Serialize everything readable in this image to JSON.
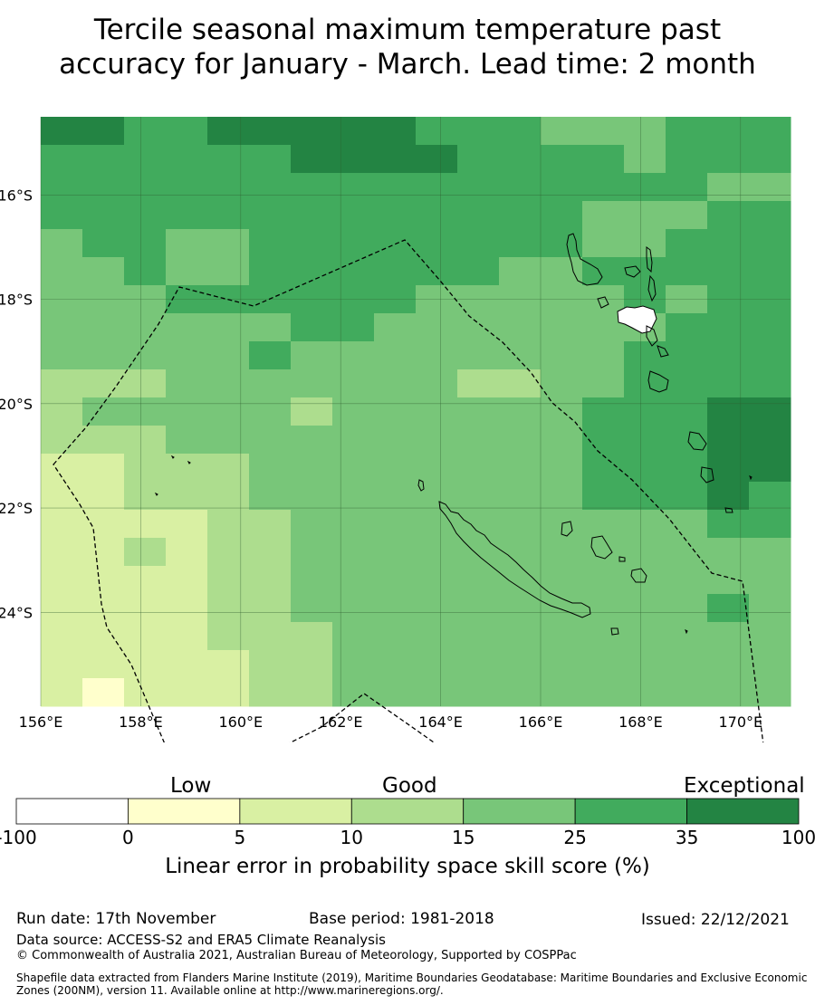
{
  "title": {
    "line1": "Tercile seasonal maximum temperature past",
    "line2": "accuracy for January - March. Lead time: 2 month"
  },
  "map": {
    "lon_labels": [
      "156°E",
      "158°E",
      "160°E",
      "162°E",
      "164°E",
      "166°E",
      "168°E",
      "170°E"
    ],
    "lat_labels": [
      "16°S",
      "18°S",
      "20°S",
      "22°S",
      "24°S"
    ],
    "lon_values": [
      156,
      158,
      160,
      162,
      164,
      166,
      168,
      170
    ],
    "lat_values": [
      -16,
      -18,
      -20,
      -22,
      -24
    ],
    "extent": {
      "lon_min": 156.0,
      "lon_max": 171.0,
      "lat_min": -25.8,
      "lat_max": -14.5
    }
  },
  "colorbar": {
    "categories": [
      "Low",
      "Good",
      "Exceptional"
    ],
    "ticks": [
      "-100",
      "0",
      "5",
      "10",
      "15",
      "25",
      "35",
      "100"
    ],
    "colors": [
      "#ffffff",
      "#ffffcc",
      "#d9f0a3",
      "#addd8e",
      "#78c679",
      "#41ab5d",
      "#238443"
    ],
    "label": "Linear error in probability space skill score (%)"
  },
  "footer": {
    "run_date": "Run date: 17th November",
    "base_period": "Base period: 1981-2018",
    "issued": "Issued: 22/12/2021",
    "data_source": "Data source: ACCESS-S2 and ERA5 Climate Reanalysis",
    "copyright": "© Commonwealth of Australia 2021, Australian Bureau of Meteorology, Supported by COSPPac",
    "shapefile": "Shapefile data extracted from Flanders Marine Institute (2019), Maritime Boundaries Geodatabase: Maritime Boundaries and Exclusive Economic Zones (200NM), version 11. Available online at http://www.marineregions.org/."
  }
}
